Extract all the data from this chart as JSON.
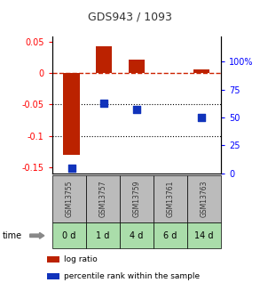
{
  "title": "GDS943 / 1093",
  "samples": [
    "GSM13755",
    "GSM13757",
    "GSM13759",
    "GSM13761",
    "GSM13763"
  ],
  "time_labels": [
    "0 d",
    "1 d",
    "4 d",
    "6 d",
    "14 d"
  ],
  "log_ratios": [
    -0.13,
    0.043,
    0.022,
    0.0,
    0.006
  ],
  "percentile_ranks": [
    5,
    63,
    57,
    null,
    50
  ],
  "left_ylim": [
    -0.16,
    0.058
  ],
  "left_yticks": [
    0.05,
    0,
    -0.05,
    -0.1,
    -0.15
  ],
  "left_yticklabels": [
    "0.05",
    "0",
    "-0.05",
    "-0.1",
    "-0.15"
  ],
  "right_ylim": [
    0,
    122
  ],
  "right_yticks": [
    0,
    25,
    50,
    75,
    100
  ],
  "right_yticklabels": [
    "0",
    "25",
    "50",
    "75",
    "100%"
  ],
  "bar_color": "#bb2200",
  "dot_color": "#1133bb",
  "dashed_line_color": "#cc2200",
  "dotted_line_color": "#000000",
  "bar_width": 0.5,
  "dot_size": 30,
  "gsm_label_color": "#333333",
  "time_row_color": "#aaddaa",
  "gsm_row_color": "#bbbbbb",
  "legend_bar_label": "log ratio",
  "legend_dot_label": "percentile rank within the sample",
  "title_color": "#333333",
  "bg_color": "#ffffff"
}
